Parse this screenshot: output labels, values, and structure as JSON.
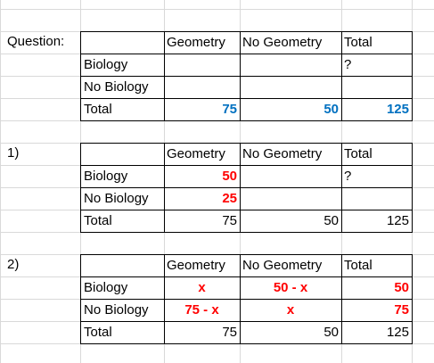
{
  "sections": [
    {
      "label": "Question:",
      "headers": [
        "",
        "Geometry",
        "No Geometry",
        "Total"
      ],
      "rows": [
        {
          "name": "Biology",
          "geometry": "",
          "no_geometry": "",
          "total": "?"
        },
        {
          "name": "No Biology",
          "geometry": "",
          "no_geometry": "",
          "total": ""
        },
        {
          "name": "Total",
          "geometry": "75",
          "no_geometry": "50",
          "total": "125"
        }
      ]
    },
    {
      "label": "1)",
      "headers": [
        "",
        "Geometry",
        "No Geometry",
        "Total"
      ],
      "rows": [
        {
          "name": "Biology",
          "geometry": "50",
          "no_geometry": "",
          "total": "?"
        },
        {
          "name": "No Biology",
          "geometry": "25",
          "no_geometry": "",
          "total": ""
        },
        {
          "name": "Total",
          "geometry": "75",
          "no_geometry": "50",
          "total": "125"
        }
      ]
    },
    {
      "label": "2)",
      "headers": [
        "",
        "Geometry",
        "No Geometry",
        "Total"
      ],
      "rows": [
        {
          "name": "Biology",
          "geometry": "x",
          "no_geometry": "50 - x",
          "total": "50"
        },
        {
          "name": "No Biology",
          "geometry": "75 - x",
          "no_geometry": "x",
          "total": "75"
        },
        {
          "name": "Total",
          "geometry": "75",
          "no_geometry": "50",
          "total": "125"
        }
      ]
    }
  ],
  "colors": {
    "blue": "#0070c0",
    "red": "#ff0000",
    "gridline": "#d9d9d9"
  }
}
